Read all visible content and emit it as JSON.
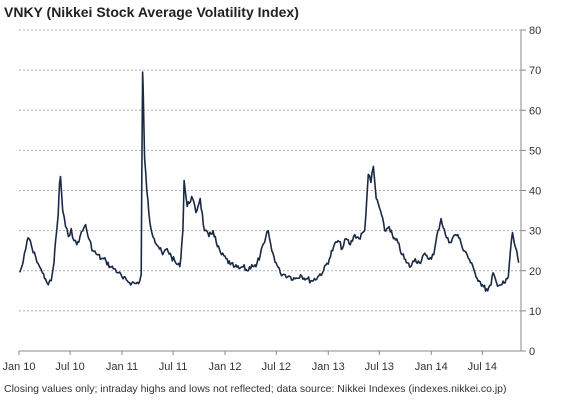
{
  "chart_data": {
    "type": "line",
    "title": "VNKY (Nikkei Stock Average Volatility Index)",
    "footnote": "Closing values only; intraday highs and lows not reflected; data source: Nikkei Indexes (indexes.nikkei.co.jp)",
    "xlabel": "",
    "ylabel": "",
    "ylim": [
      0,
      80
    ],
    "y_ticks": [
      "0",
      "10",
      "20",
      "30",
      "40",
      "50",
      "60",
      "70",
      "80"
    ],
    "x_ticks": [
      "Jan 10",
      "Jul 10",
      "Jan 11",
      "Jul 11",
      "Jan 12",
      "Jul 12",
      "Jan 13",
      "Jul 13",
      "Jan 14",
      "Jul 14"
    ],
    "xlim": [
      "2010-01-01",
      "2014-11-15"
    ],
    "grid": "horizontal dashed",
    "y_axis_side": "right",
    "series": [
      {
        "color": "#1a2a44",
        "points": [
          [
            "2010-01-04",
            19.6
          ],
          [
            "2010-01-15",
            22.0
          ],
          [
            "2010-01-25",
            25.5
          ],
          [
            "2010-02-02",
            28.2
          ],
          [
            "2010-02-10",
            27.5
          ],
          [
            "2010-02-20",
            24.5
          ],
          [
            "2010-03-01",
            23.5
          ],
          [
            "2010-03-15",
            21.0
          ],
          [
            "2010-03-25",
            19.5
          ],
          [
            "2010-04-05",
            18.0
          ],
          [
            "2010-04-15",
            16.5
          ],
          [
            "2010-04-25",
            17.5
          ],
          [
            "2010-05-05",
            22.0
          ],
          [
            "2010-05-10",
            27.0
          ],
          [
            "2010-05-20",
            34.0
          ],
          [
            "2010-05-25",
            42.0
          ],
          [
            "2010-05-28",
            43.5
          ],
          [
            "2010-06-05",
            35.0
          ],
          [
            "2010-06-15",
            31.0
          ],
          [
            "2010-06-25",
            28.5
          ],
          [
            "2010-07-05",
            30.5
          ],
          [
            "2010-07-15",
            27.5
          ],
          [
            "2010-07-25",
            26.5
          ],
          [
            "2010-08-05",
            28.5
          ],
          [
            "2010-08-15",
            30.0
          ],
          [
            "2010-08-25",
            31.5
          ],
          [
            "2010-09-05",
            28.0
          ],
          [
            "2010-09-20",
            25.0
          ],
          [
            "2010-10-05",
            24.0
          ],
          [
            "2010-10-20",
            23.0
          ],
          [
            "2010-11-05",
            22.5
          ],
          [
            "2010-11-20",
            21.0
          ],
          [
            "2010-12-05",
            20.5
          ],
          [
            "2010-12-20",
            19.5
          ],
          [
            "2011-01-05",
            18.0
          ],
          [
            "2011-01-20",
            17.5
          ],
          [
            "2011-02-05",
            17.0
          ],
          [
            "2011-02-20",
            16.8
          ],
          [
            "2011-03-05",
            17.5
          ],
          [
            "2011-03-10",
            19.0
          ],
          [
            "2011-03-14",
            60.0
          ],
          [
            "2011-03-15",
            69.5
          ],
          [
            "2011-03-17",
            65.0
          ],
          [
            "2011-03-22",
            48.0
          ],
          [
            "2011-03-30",
            40.0
          ],
          [
            "2011-04-10",
            32.0
          ],
          [
            "2011-04-25",
            28.0
          ],
          [
            "2011-05-10",
            26.0
          ],
          [
            "2011-05-25",
            24.0
          ],
          [
            "2011-06-10",
            25.5
          ],
          [
            "2011-06-25",
            23.5
          ],
          [
            "2011-07-10",
            22.0
          ],
          [
            "2011-07-25",
            21.0
          ],
          [
            "2011-08-05",
            30.0
          ],
          [
            "2011-08-09",
            42.5
          ],
          [
            "2011-08-20",
            36.0
          ],
          [
            "2011-09-05",
            38.5
          ],
          [
            "2011-09-20",
            34.5
          ],
          [
            "2011-10-05",
            38.0
          ],
          [
            "2011-10-20",
            30.0
          ],
          [
            "2011-11-05",
            28.5
          ],
          [
            "2011-11-20",
            30.0
          ],
          [
            "2011-12-05",
            26.0
          ],
          [
            "2011-12-20",
            24.0
          ],
          [
            "2012-01-05",
            23.0
          ],
          [
            "2012-01-20",
            21.5
          ],
          [
            "2012-02-05",
            21.0
          ],
          [
            "2012-02-20",
            20.5
          ],
          [
            "2012-03-05",
            21.0
          ],
          [
            "2012-03-20",
            20.0
          ],
          [
            "2012-04-05",
            21.5
          ],
          [
            "2012-04-20",
            21.0
          ],
          [
            "2012-05-05",
            24.0
          ],
          [
            "2012-05-20",
            27.0
          ],
          [
            "2012-06-02",
            30.0
          ],
          [
            "2012-06-15",
            25.0
          ],
          [
            "2012-06-30",
            22.0
          ],
          [
            "2012-07-15",
            19.5
          ],
          [
            "2012-08-01",
            19.0
          ],
          [
            "2012-08-20",
            18.5
          ],
          [
            "2012-09-05",
            18.0
          ],
          [
            "2012-09-25",
            19.0
          ],
          [
            "2012-10-15",
            18.0
          ],
          [
            "2012-11-05",
            17.5
          ],
          [
            "2012-11-25",
            18.5
          ],
          [
            "2012-12-15",
            20.0
          ],
          [
            "2013-01-05",
            23.0
          ],
          [
            "2013-01-20",
            26.0
          ],
          [
            "2013-02-05",
            27.5
          ],
          [
            "2013-02-20",
            25.5
          ],
          [
            "2013-03-05",
            28.0
          ],
          [
            "2013-03-20",
            26.5
          ],
          [
            "2013-04-05",
            29.0
          ],
          [
            "2013-04-20",
            28.0
          ],
          [
            "2013-05-10",
            30.0
          ],
          [
            "2013-05-23",
            44.0
          ],
          [
            "2013-06-01",
            42.0
          ],
          [
            "2013-06-10",
            46.0
          ],
          [
            "2013-06-20",
            38.0
          ],
          [
            "2013-07-05",
            35.0
          ],
          [
            "2013-07-20",
            30.0
          ],
          [
            "2013-08-05",
            31.0
          ],
          [
            "2013-08-20",
            28.0
          ],
          [
            "2013-09-05",
            27.0
          ],
          [
            "2013-09-20",
            24.0
          ],
          [
            "2013-10-05",
            22.0
          ],
          [
            "2013-10-20",
            21.0
          ],
          [
            "2013-11-05",
            23.0
          ],
          [
            "2013-11-20",
            22.0
          ],
          [
            "2013-12-05",
            24.0
          ],
          [
            "2013-12-20",
            23.0
          ],
          [
            "2014-01-10",
            24.0
          ],
          [
            "2014-01-25",
            30.0
          ],
          [
            "2014-02-05",
            33.0
          ],
          [
            "2014-02-20",
            29.0
          ],
          [
            "2014-03-05",
            27.0
          ],
          [
            "2014-03-20",
            28.5
          ],
          [
            "2014-04-05",
            29.0
          ],
          [
            "2014-04-20",
            26.0
          ],
          [
            "2014-05-05",
            24.5
          ],
          [
            "2014-05-20",
            22.0
          ],
          [
            "2014-06-05",
            19.5
          ],
          [
            "2014-06-20",
            17.5
          ],
          [
            "2014-07-05",
            16.0
          ],
          [
            "2014-07-20",
            15.0
          ],
          [
            "2014-08-01",
            16.5
          ],
          [
            "2014-08-08",
            19.5
          ],
          [
            "2014-08-20",
            17.0
          ],
          [
            "2014-09-05",
            16.5
          ],
          [
            "2014-09-20",
            17.0
          ],
          [
            "2014-10-01",
            18.5
          ],
          [
            "2014-10-10",
            26.0
          ],
          [
            "2014-10-16",
            29.5
          ],
          [
            "2014-10-22",
            27.0
          ],
          [
            "2014-10-28",
            25.5
          ],
          [
            "2014-11-03",
            23.5
          ],
          [
            "2014-11-07",
            22.0
          ]
        ]
      }
    ]
  }
}
